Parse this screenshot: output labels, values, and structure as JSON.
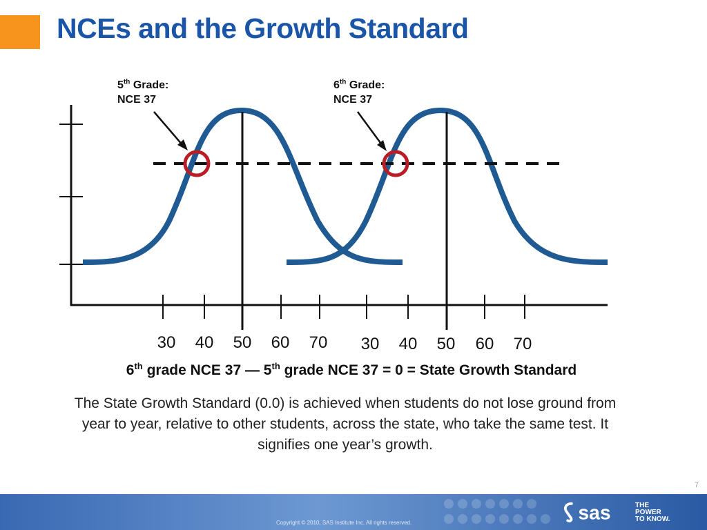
{
  "slide": {
    "title": "NCEs and the Growth Standard",
    "page_number": "7"
  },
  "colors": {
    "accent_square": "#f7941d",
    "title": "#1a55a8",
    "curve": "#1f5a93",
    "circle": "#b81e24",
    "footer": "#3a69b3"
  },
  "diagram": {
    "callouts": [
      {
        "grade": "5",
        "suffix": "th",
        "label": "Grade:",
        "value": "NCE 37"
      },
      {
        "grade": "6",
        "suffix": "th",
        "label": "Grade:",
        "value": "NCE 37"
      }
    ],
    "axis_groups": [
      {
        "ticks": [
          "30",
          "40",
          "50",
          "60",
          "70"
        ]
      },
      {
        "ticks": [
          "30",
          "40",
          "50",
          "60",
          "70"
        ]
      }
    ]
  },
  "equation": {
    "part1_num": "6",
    "part1_sup": "th",
    "part1_text": " grade NCE 37 — ",
    "part2_num": "5",
    "part2_sup": "th",
    "part2_text": " grade NCE 37 = 0 = State Growth Standard"
  },
  "body_text": "The State Growth Standard (0.0) is achieved when students do not lose ground from year to year, relative to other students, across the state, who take the same test. It signifies one year’s growth.",
  "footer": {
    "copyright": "Copyright © 2010, SAS Institute Inc. All rights reserved.",
    "logo_text": "sas",
    "tagline": [
      "THE",
      "POWER",
      "TO KNOW."
    ]
  }
}
